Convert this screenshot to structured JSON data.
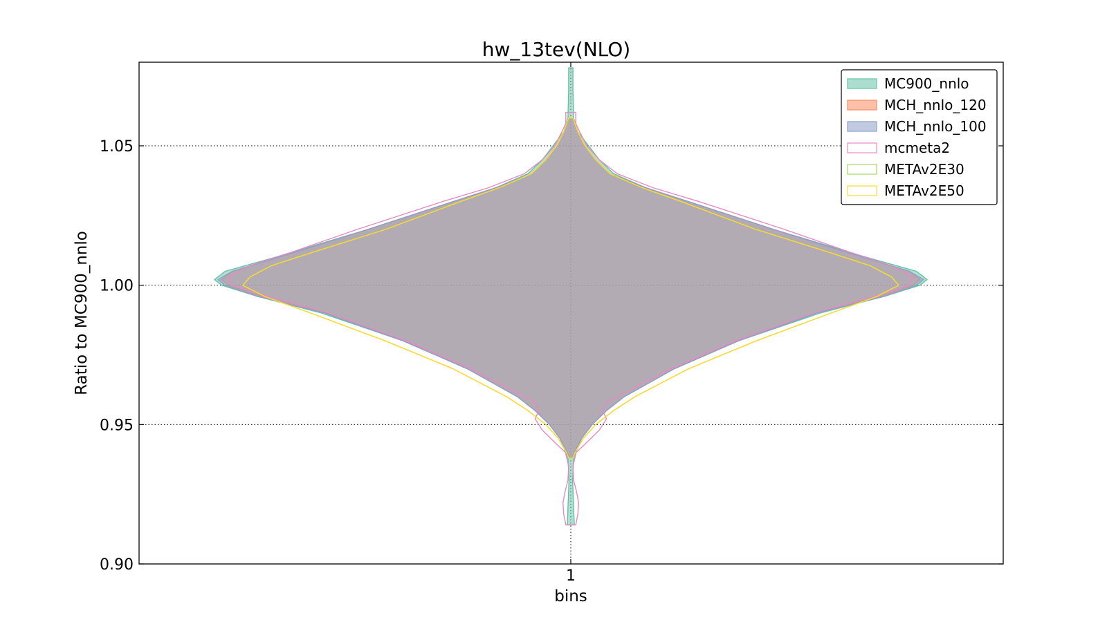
{
  "chart_data": {
    "type": "violin",
    "title": "hw_13tev(NLO)",
    "xlabel": "bins",
    "ylabel": "Ratio to MC900_nnlo",
    "categories": [
      "1"
    ],
    "ylim": [
      0.9,
      1.08
    ],
    "yticks": [
      "0.90",
      "0.95",
      "1.00",
      "1.05"
    ],
    "ytick_values": [
      0.9,
      0.95,
      1.0,
      1.05
    ],
    "grid": true,
    "legend_position": "top-right",
    "series": [
      {
        "name": "MC900_nnlo",
        "fill": "#66c2a5",
        "stroke": "#66c2a5",
        "filled": true,
        "range": [
          0.914,
          1.078
        ],
        "profile": [
          [
            0.914,
            0.01
          ],
          [
            0.92,
            0.008
          ],
          [
            0.93,
            0.005
          ],
          [
            0.938,
            0.008
          ],
          [
            0.945,
            0.03
          ],
          [
            0.95,
            0.06
          ],
          [
            0.955,
            0.1
          ],
          [
            0.96,
            0.15
          ],
          [
            0.97,
            0.29
          ],
          [
            0.98,
            0.47
          ],
          [
            0.99,
            0.7
          ],
          [
            0.996,
            0.88
          ],
          [
            1.0,
            0.98
          ],
          [
            1.002,
            1.0
          ],
          [
            1.005,
            0.97
          ],
          [
            1.01,
            0.83
          ],
          [
            1.02,
            0.57
          ],
          [
            1.03,
            0.33
          ],
          [
            1.035,
            0.21
          ],
          [
            1.04,
            0.12
          ],
          [
            1.045,
            0.08
          ],
          [
            1.05,
            0.05
          ],
          [
            1.055,
            0.02
          ],
          [
            1.06,
            0.008
          ],
          [
            1.07,
            0.006
          ],
          [
            1.078,
            0.006
          ]
        ]
      },
      {
        "name": "MCH_nnlo_120",
        "fill": "#fc8d62",
        "stroke": "#fc8d62",
        "filled": true,
        "range": [
          0.938,
          1.06
        ],
        "profile": [
          [
            0.938,
            0.006
          ],
          [
            0.94,
            0.01
          ],
          [
            0.945,
            0.03
          ],
          [
            0.95,
            0.06
          ],
          [
            0.955,
            0.1
          ],
          [
            0.96,
            0.15
          ],
          [
            0.97,
            0.29
          ],
          [
            0.98,
            0.47
          ],
          [
            0.99,
            0.69
          ],
          [
            0.996,
            0.87
          ],
          [
            1.0,
            0.96
          ],
          [
            1.002,
            0.98
          ],
          [
            1.005,
            0.95
          ],
          [
            1.01,
            0.82
          ],
          [
            1.02,
            0.57
          ],
          [
            1.03,
            0.33
          ],
          [
            1.035,
            0.21
          ],
          [
            1.04,
            0.11
          ],
          [
            1.045,
            0.07
          ],
          [
            1.05,
            0.04
          ],
          [
            1.055,
            0.02
          ],
          [
            1.06,
            0.006
          ]
        ]
      },
      {
        "name": "MCH_nnlo_100",
        "fill": "#8da0cb",
        "stroke": "#8da0cb",
        "filled": true,
        "range": [
          0.938,
          1.06
        ],
        "profile": [
          [
            0.938,
            0.006
          ],
          [
            0.94,
            0.01
          ],
          [
            0.945,
            0.03
          ],
          [
            0.95,
            0.06
          ],
          [
            0.955,
            0.1
          ],
          [
            0.96,
            0.15
          ],
          [
            0.97,
            0.29
          ],
          [
            0.98,
            0.47
          ],
          [
            0.99,
            0.69
          ],
          [
            0.996,
            0.88
          ],
          [
            1.0,
            0.97
          ],
          [
            1.002,
            0.99
          ],
          [
            1.005,
            0.95
          ],
          [
            1.01,
            0.82
          ],
          [
            1.02,
            0.57
          ],
          [
            1.03,
            0.33
          ],
          [
            1.035,
            0.21
          ],
          [
            1.04,
            0.11
          ],
          [
            1.045,
            0.07
          ],
          [
            1.05,
            0.04
          ],
          [
            1.055,
            0.02
          ],
          [
            1.06,
            0.006
          ]
        ]
      },
      {
        "name": "mcmeta2",
        "fill": "#e78ac3",
        "stroke": "#e78ac3",
        "filled": false,
        "range": [
          0.914,
          1.062
        ],
        "profile": [
          [
            0.914,
            0.014
          ],
          [
            0.918,
            0.02
          ],
          [
            0.922,
            0.022
          ],
          [
            0.926,
            0.016
          ],
          [
            0.93,
            0.008
          ],
          [
            0.935,
            0.006
          ],
          [
            0.94,
            0.015
          ],
          [
            0.943,
            0.04
          ],
          [
            0.948,
            0.08
          ],
          [
            0.952,
            0.1
          ],
          [
            0.955,
            0.09
          ],
          [
            0.958,
            0.1
          ],
          [
            0.962,
            0.16
          ],
          [
            0.97,
            0.28
          ],
          [
            0.98,
            0.46
          ],
          [
            0.99,
            0.68
          ],
          [
            0.996,
            0.85
          ],
          [
            1.0,
            0.95
          ],
          [
            1.003,
            0.96
          ],
          [
            1.007,
            0.9
          ],
          [
            1.012,
            0.78
          ],
          [
            1.02,
            0.6
          ],
          [
            1.03,
            0.36
          ],
          [
            1.035,
            0.23
          ],
          [
            1.04,
            0.13
          ],
          [
            1.045,
            0.08
          ],
          [
            1.05,
            0.045
          ],
          [
            1.055,
            0.025
          ],
          [
            1.058,
            0.014
          ],
          [
            1.062,
            0.014
          ]
        ]
      },
      {
        "name": "METAv2E30",
        "fill": "#a6d854",
        "stroke": "#a6d854",
        "filled": false,
        "range": [
          0.938,
          1.06
        ],
        "profile": [
          [
            0.938,
            0.006
          ],
          [
            0.94,
            0.012
          ],
          [
            0.945,
            0.035
          ],
          [
            0.95,
            0.07
          ],
          [
            0.955,
            0.12
          ],
          [
            0.96,
            0.18
          ],
          [
            0.97,
            0.33
          ],
          [
            0.98,
            0.52
          ],
          [
            0.99,
            0.73
          ],
          [
            0.996,
            0.86
          ],
          [
            1.0,
            0.92
          ],
          [
            1.003,
            0.9
          ],
          [
            1.007,
            0.84
          ],
          [
            1.012,
            0.72
          ],
          [
            1.02,
            0.52
          ],
          [
            1.03,
            0.31
          ],
          [
            1.035,
            0.2
          ],
          [
            1.04,
            0.11
          ],
          [
            1.045,
            0.07
          ],
          [
            1.05,
            0.04
          ],
          [
            1.055,
            0.02
          ],
          [
            1.06,
            0.006
          ]
        ]
      },
      {
        "name": "METAv2E50",
        "fill": "#ffd92f",
        "stroke": "#ffd92f",
        "filled": false,
        "range": [
          0.938,
          1.06
        ],
        "profile": [
          [
            0.938,
            0.006
          ],
          [
            0.94,
            0.012
          ],
          [
            0.945,
            0.035
          ],
          [
            0.95,
            0.07
          ],
          [
            0.955,
            0.12
          ],
          [
            0.96,
            0.18
          ],
          [
            0.97,
            0.33
          ],
          [
            0.98,
            0.52
          ],
          [
            0.99,
            0.73
          ],
          [
            0.996,
            0.86
          ],
          [
            1.0,
            0.92
          ],
          [
            1.003,
            0.9
          ],
          [
            1.007,
            0.84
          ],
          [
            1.012,
            0.72
          ],
          [
            1.02,
            0.52
          ],
          [
            1.03,
            0.31
          ],
          [
            1.035,
            0.2
          ],
          [
            1.04,
            0.11
          ],
          [
            1.045,
            0.07
          ],
          [
            1.05,
            0.04
          ],
          [
            1.055,
            0.02
          ],
          [
            1.06,
            0.006
          ]
        ]
      }
    ]
  }
}
